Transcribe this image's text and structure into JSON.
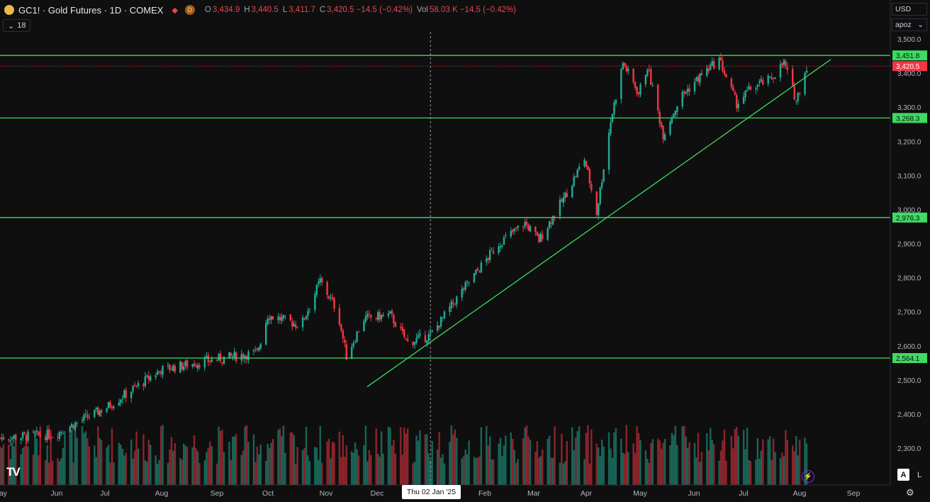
{
  "header": {
    "title": "GC1! · Gold Futures · 1D · COMEX",
    "symbol_icon": "gold-coin-icon",
    "flag_icon": "flag-icon",
    "badge": "D",
    "ohlc": [
      {
        "key": "O",
        "value": "3,434.9"
      },
      {
        "key": "H",
        "value": "3,440.5"
      },
      {
        "key": "L",
        "value": "3,411.7"
      },
      {
        "key": "C",
        "value": "3,420.5 −14.5 (−0.42%)"
      },
      {
        "key": "Vol",
        "value": "58.03 K −14.5 (−0.42%)"
      }
    ],
    "down_color": "#e5484d"
  },
  "indicators_button": {
    "icon": "chevron-down-icon",
    "label": "18"
  },
  "scale": {
    "currency": "USD",
    "mode": "apoz"
  },
  "corner": {
    "logo": "TV",
    "auto_label": "A",
    "log_label": "L",
    "bolt_icon": "lightning-icon",
    "settings_icon": "gear-icon"
  },
  "chart_data": {
    "type": "candlestick",
    "symbol": "GC1!",
    "y_ticks": [
      "3,500.0",
      "3,400.0",
      "3,300.0",
      "3,200.0",
      "3,100.0",
      "3,000.0",
      "2,900.0",
      "2,800.0",
      "2,700.0",
      "2,600.0",
      "2,500.0",
      "2,400.0",
      "2,300.0"
    ],
    "y_tick_values": [
      3500,
      3400,
      3300,
      3200,
      3100,
      3000,
      2900,
      2800,
      2700,
      2600,
      2500,
      2400,
      2300
    ],
    "x_ticks": [
      "May",
      "Jun",
      "Jul",
      "Aug",
      "Sep",
      "Oct",
      "Nov",
      "Dec",
      "Feb",
      "Mar",
      "Apr",
      "May",
      "Jun",
      "Jul",
      "Aug",
      "Sep"
    ],
    "crosshair_date": "Thu 02 Jan '25",
    "current_price": {
      "value": 3420.5,
      "label": "3,420.5",
      "color": "#f23645"
    },
    "horizontal_levels": [
      {
        "value": 3451.8,
        "label": "3,451.8"
      },
      {
        "value": 3268.3,
        "label": "3,268.3"
      },
      {
        "value": 2976.3,
        "label": "2,976.3"
      },
      {
        "value": 2564.1,
        "label": "2,564.1"
      }
    ],
    "trendline": {
      "from": {
        "date": "Nov 2024",
        "value": 2480
      },
      "to": {
        "date": "Aug 2025",
        "value": 3440
      }
    },
    "level_color": "#3ddc62",
    "up_color": "#22ab94",
    "down_color": "#f23645",
    "price_path": [
      {
        "date": "2024-05",
        "close": 2330
      },
      {
        "date": "2024-06",
        "close": 2340
      },
      {
        "date": "2024-07",
        "close": 2420
      },
      {
        "date": "2024-08",
        "close": 2530
      },
      {
        "date": "2024-09",
        "close": 2560
      },
      {
        "date": "2024-09-25",
        "close": 2580
      },
      {
        "date": "2024-10",
        "close": 2690
      },
      {
        "date": "2024-10-20",
        "close": 2660
      },
      {
        "date": "2024-10-31",
        "close": 2790
      },
      {
        "date": "2024-11-10",
        "close": 2700
      },
      {
        "date": "2024-11-15",
        "close": 2570
      },
      {
        "date": "2024-11-25",
        "close": 2680
      },
      {
        "date": "2024-12-10",
        "close": 2690
      },
      {
        "date": "2024-12-20",
        "close": 2610
      },
      {
        "date": "2025-01-02",
        "close": 2630
      },
      {
        "date": "2025-01-20",
        "close": 2760
      },
      {
        "date": "2025-02-10",
        "close": 2900
      },
      {
        "date": "2025-02-25",
        "close": 2960
      },
      {
        "date": "2025-03-05",
        "close": 2910
      },
      {
        "date": "2025-03-20",
        "close": 3040
      },
      {
        "date": "2025-03-31",
        "close": 3150
      },
      {
        "date": "2025-04-07",
        "close": 2990
      },
      {
        "date": "2025-04-15",
        "close": 3260
      },
      {
        "date": "2025-04-22",
        "close": 3430
      },
      {
        "date": "2025-05-01",
        "close": 3340
      },
      {
        "date": "2025-05-06",
        "close": 3420
      },
      {
        "date": "2025-05-15",
        "close": 3220
      },
      {
        "date": "2025-05-25",
        "close": 3330
      },
      {
        "date": "2025-06-05",
        "close": 3390
      },
      {
        "date": "2025-06-16",
        "close": 3440
      },
      {
        "date": "2025-06-26",
        "close": 3310
      },
      {
        "date": "2025-07-05",
        "close": 3360
      },
      {
        "date": "2025-07-15",
        "close": 3380
      },
      {
        "date": "2025-07-23",
        "close": 3430
      },
      {
        "date": "2025-07-30",
        "close": 3320
      },
      {
        "date": "2025-08-05",
        "close": 3420
      }
    ]
  }
}
